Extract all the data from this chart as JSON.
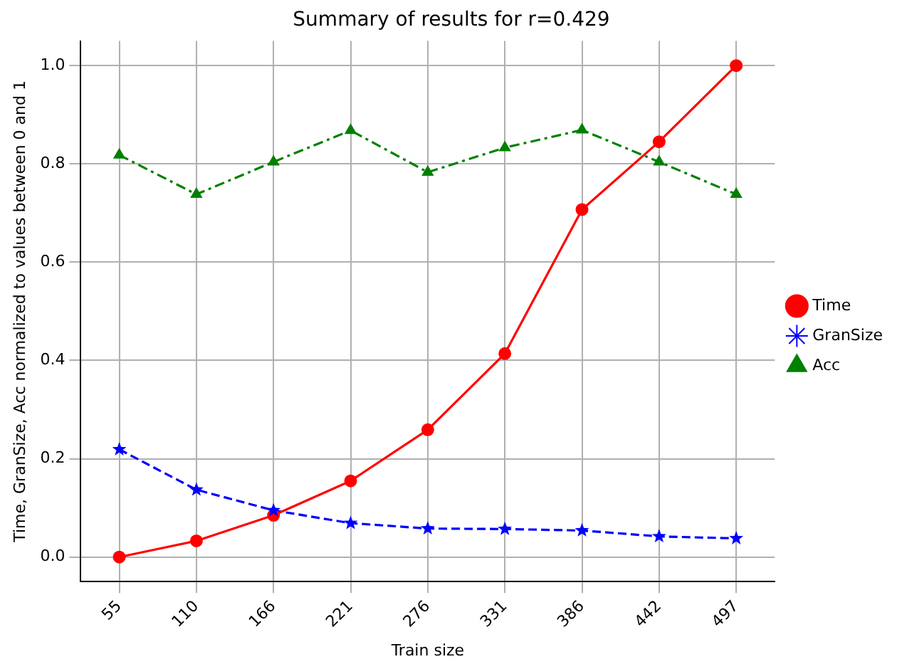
{
  "chart_data": {
    "type": "line",
    "title": "Summary of results for r=0.429",
    "xlabel": "Train size",
    "ylabel": "Time, GranSize, Acc normalized to values between 0 and 1",
    "categories": [
      "55",
      "110",
      "166",
      "221",
      "276",
      "331",
      "386",
      "442",
      "497"
    ],
    "series": [
      {
        "name": "Time",
        "color": "#ff0000",
        "marker": "circle",
        "line_style": "solid",
        "values": [
          0,
          0.033,
          0.085,
          0.155,
          0.259,
          0.414,
          0.707,
          0.845,
          1
        ]
      },
      {
        "name": "GranSize",
        "color": "#0000ff",
        "marker": "star",
        "line_style": "dashed",
        "values": [
          0.219,
          0.137,
          0.095,
          0.069,
          0.058,
          0.057,
          0.054,
          0.042,
          0.038
        ]
      },
      {
        "name": "Acc",
        "color": "#008000",
        "marker": "triangle",
        "line_style": "dashdot",
        "values": [
          0.818,
          0.738,
          0.804,
          0.868,
          0.783,
          0.833,
          0.869,
          0.804,
          0.738
        ]
      }
    ],
    "ylim": [
      -0.05,
      1.05
    ],
    "yticks": [
      {
        "value": 0,
        "label": "0.0"
      },
      {
        "value": 0.2,
        "label": "0.2"
      },
      {
        "value": 0.4,
        "label": "0.4"
      },
      {
        "value": 0.6,
        "label": "0.6"
      },
      {
        "value": 0.8,
        "label": "0.8"
      },
      {
        "value": 1,
        "label": "1.0"
      }
    ],
    "grid": true,
    "legend": "right"
  }
}
